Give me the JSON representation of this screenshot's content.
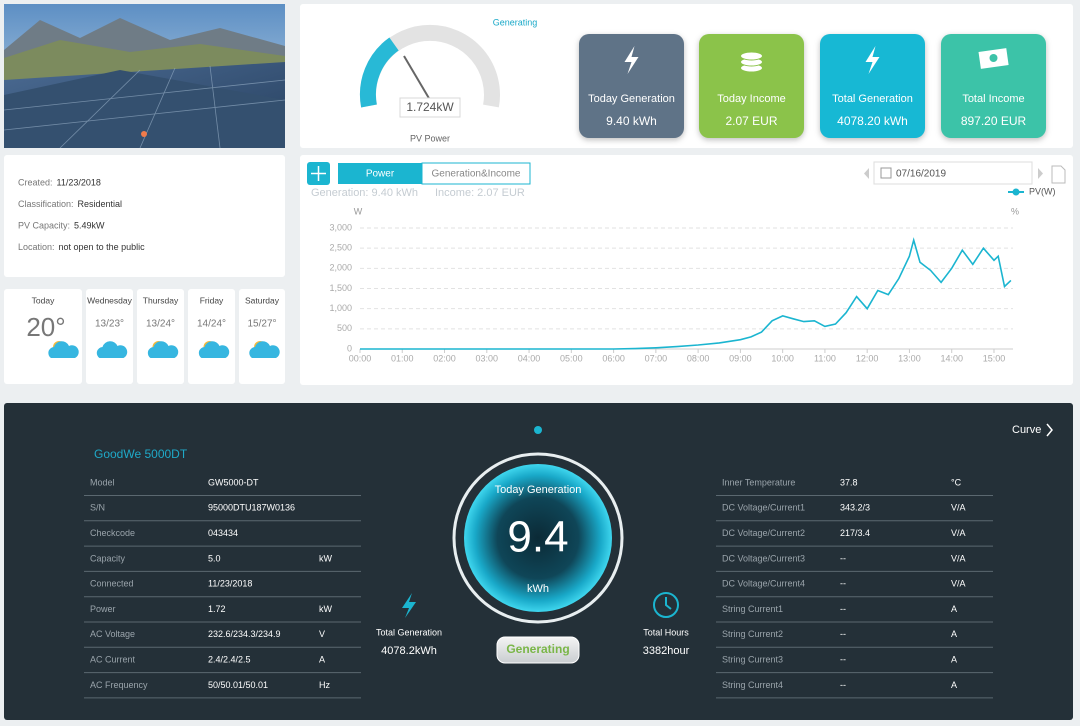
{
  "summary": {
    "status": "Generating",
    "power": "1.724kW",
    "power_label": "PV Power",
    "cards": [
      {
        "label": "Today Generation",
        "value": "9.40 kWh"
      },
      {
        "label": "Today Income",
        "value": "2.07 EUR"
      },
      {
        "label": "Total Generation",
        "value": "4078.20 kWh"
      },
      {
        "label": "Total Income",
        "value": "897.20 EUR"
      }
    ]
  },
  "plant_info": [
    {
      "label": "Created:",
      "value": "11/23/2018"
    },
    {
      "label": "Classification:",
      "value": "Residential"
    },
    {
      "label": "PV Capacity:",
      "value": "5.49kW"
    },
    {
      "label": "Location:",
      "value": "not open to the public"
    }
  ],
  "weather": [
    {
      "day": "Today",
      "temp": "20°"
    },
    {
      "day": "Wednesday",
      "temp": "13/23°"
    },
    {
      "day": "Thursday",
      "temp": "13/24°"
    },
    {
      "day": "Friday",
      "temp": "14/24°"
    },
    {
      "day": "Saturday",
      "temp": "15/27°"
    }
  ],
  "chart_panel": {
    "tabs": [
      "Power",
      "Generation&Income"
    ],
    "generation": "Generation: 9.40 kWh",
    "income": "Income: 2.07 EUR",
    "date": "07/16/2019"
  },
  "chart_data": {
    "type": "line",
    "y_label": "W",
    "y2_label": "%",
    "x": [
      0,
      1,
      2,
      3,
      4,
      5,
      6,
      6.5,
      7,
      7.5,
      8,
      8.5,
      9,
      9.25,
      9.5,
      9.75,
      10,
      10.25,
      10.5,
      10.75,
      11,
      11.25,
      11.5,
      11.75,
      12,
      12.25,
      12.5,
      12.75,
      13,
      13.1,
      13.25,
      13.5,
      13.75,
      14,
      14.25,
      14.5,
      14.75,
      15,
      15.1,
      15.25,
      15.4
    ],
    "series": [
      {
        "name": "PV(W)",
        "color": "#1bb5d0",
        "values": [
          0,
          0,
          0,
          0,
          0,
          0,
          0,
          10,
          30,
          60,
          100,
          150,
          230,
          300,
          420,
          700,
          820,
          750,
          680,
          700,
          560,
          620,
          900,
          1300,
          1000,
          1450,
          1350,
          1750,
          2300,
          2700,
          2150,
          1950,
          1650,
          2000,
          2450,
          2100,
          2500,
          2200,
          2300,
          1550,
          1700
        ]
      }
    ],
    "xlim": [
      0,
      15.45
    ],
    "xticks": [
      {
        "value": 0,
        "label": "00:00"
      },
      {
        "value": 1,
        "label": "01:00"
      },
      {
        "value": 2,
        "label": "02:00"
      },
      {
        "value": 3,
        "label": "03:00"
      },
      {
        "value": 4,
        "label": "04:00"
      },
      {
        "value": 5,
        "label": "05:00"
      },
      {
        "value": 6,
        "label": "06:00"
      },
      {
        "value": 7,
        "label": "07:00"
      },
      {
        "value": 8,
        "label": "08:00"
      },
      {
        "value": 9,
        "label": "09:00"
      },
      {
        "value": 10,
        "label": "10:00"
      },
      {
        "value": 11,
        "label": "11:00"
      },
      {
        "value": 12,
        "label": "12:00"
      },
      {
        "value": 13,
        "label": "13:00"
      },
      {
        "value": 14,
        "label": "14:00"
      },
      {
        "value": 15,
        "label": "15:00"
      }
    ],
    "ylim": [
      0,
      3000
    ],
    "yticks": [
      0,
      500,
      {
        "value": 1000,
        "label": "1,000"
      },
      {
        "value": 1500,
        "label": "1,500"
      },
      {
        "value": 2000,
        "label": "2,000"
      },
      {
        "value": 2500,
        "label": "2,500"
      },
      {
        "value": 3000,
        "label": "3,000"
      }
    ],
    "grid": true
  },
  "device": {
    "title": "GoodWe 5000DT",
    "curve": "Curve",
    "left_rows": [
      {
        "label": "Model",
        "value": "GW5000-DT"
      },
      {
        "label": "S/N",
        "value": "95000DTU187W0136"
      },
      {
        "label": "Checkcode",
        "value": "043434"
      },
      {
        "label": "Capacity",
        "value": "5.0",
        "unit": "kW"
      },
      {
        "label": "Connected",
        "value": "11/23/2018"
      },
      {
        "label": "Power",
        "value": "1.72",
        "unit": "kW"
      },
      {
        "label": "AC Voltage",
        "value": "232.6/234.3/234.9",
        "unit": "V"
      },
      {
        "label": "AC Current",
        "value": "2.4/2.4/2.5",
        "unit": "A"
      },
      {
        "label": "AC Frequency",
        "value": "50/50.01/50.01",
        "unit": "Hz"
      }
    ],
    "right_rows": [
      {
        "label": "Inner Temperature",
        "value": "37.8",
        "unit": "°C"
      },
      {
        "label": "DC Voltage/Current1",
        "value": "343.2/3",
        "unit": "V/A"
      },
      {
        "label": "DC Voltage/Current2",
        "value": "217/3.4",
        "unit": "V/A"
      },
      {
        "label": "DC Voltage/Current3",
        "value": "--",
        "unit": "V/A"
      },
      {
        "label": "DC Voltage/Current4",
        "value": "--",
        "unit": "V/A"
      },
      {
        "label": "String Current1",
        "value": "--",
        "unit": "A"
      },
      {
        "label": "String Current2",
        "value": "--",
        "unit": "A"
      },
      {
        "label": "String Current3",
        "value": "--",
        "unit": "A"
      },
      {
        "label": "String Current4",
        "value": "--",
        "unit": "A"
      }
    ],
    "today_label": "Today Generation",
    "today_value": "9.4",
    "today_unit": "kWh",
    "status": "Generating",
    "total_generation_label": "Total Generation",
    "total_generation": "4078.2kWh",
    "total_hours_label": "Total Hours",
    "total_hours": "3382hour"
  }
}
